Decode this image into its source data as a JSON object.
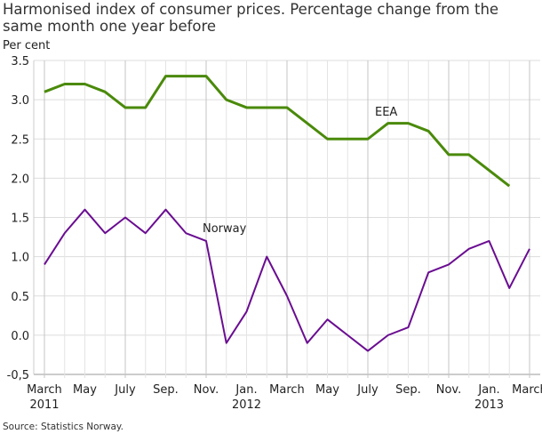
{
  "chart_data": {
    "type": "line",
    "title": "Harmonised index of consumer prices. Percentage change from the same month one year before",
    "ylabel": "Per cent",
    "source": "Source: Statistics Norway.",
    "ylim": [
      -0.5,
      3.5
    ],
    "yticks": [
      "3.5",
      "3.0",
      "2.5",
      "2.0",
      "1.5",
      "1.0",
      "0.5",
      "0.0",
      "-0,5"
    ],
    "ytick_values": [
      3.5,
      3.0,
      2.5,
      2.0,
      1.5,
      1.0,
      0.5,
      0.0,
      -0.5
    ],
    "x_months": [
      "2011-03",
      "2011-04",
      "2011-05",
      "2011-06",
      "2011-07",
      "2011-08",
      "2011-09",
      "2011-10",
      "2011-11",
      "2011-12",
      "2012-01",
      "2012-02",
      "2012-03",
      "2012-04",
      "2012-05",
      "2012-06",
      "2012-07",
      "2012-08",
      "2012-09",
      "2012-10",
      "2012-11",
      "2012-12",
      "2013-01",
      "2013-02",
      "2013-03"
    ],
    "xticks": [
      {
        "month": "2011-03",
        "label": "March",
        "year": "2011"
      },
      {
        "month": "2011-05",
        "label": "May"
      },
      {
        "month": "2011-07",
        "label": "July"
      },
      {
        "month": "2011-09",
        "label": "Sep."
      },
      {
        "month": "2011-11",
        "label": "Nov."
      },
      {
        "month": "2012-01",
        "label": "Jan.",
        "year": "2012"
      },
      {
        "month": "2012-03",
        "label": "March"
      },
      {
        "month": "2012-05",
        "label": "May"
      },
      {
        "month": "2012-07",
        "label": "July"
      },
      {
        "month": "2012-09",
        "label": "Sep."
      },
      {
        "month": "2012-11",
        "label": "Nov."
      },
      {
        "month": "2013-01",
        "label": "Jan.",
        "year": "2013"
      },
      {
        "month": "2013-03",
        "label": "March"
      }
    ],
    "grid": true,
    "series": [
      {
        "name": "EEA",
        "color": "#4a8a0a",
        "values": [
          3.1,
          3.2,
          3.2,
          3.1,
          2.9,
          2.9,
          3.3,
          3.3,
          3.3,
          3.0,
          2.9,
          2.9,
          2.9,
          2.7,
          2.5,
          2.5,
          2.5,
          2.7,
          2.7,
          2.6,
          2.3,
          2.3,
          2.1,
          1.9,
          null
        ]
      },
      {
        "name": "Norway",
        "color": "#6a0d91",
        "values": [
          0.9,
          1.3,
          1.6,
          1.3,
          1.5,
          1.3,
          1.6,
          1.3,
          1.2,
          -0.1,
          0.3,
          1.0,
          0.5,
          -0.1,
          0.2,
          0.0,
          -0.2,
          0.0,
          0.1,
          0.8,
          0.9,
          1.1,
          1.2,
          0.6,
          1.1
        ]
      }
    ]
  }
}
